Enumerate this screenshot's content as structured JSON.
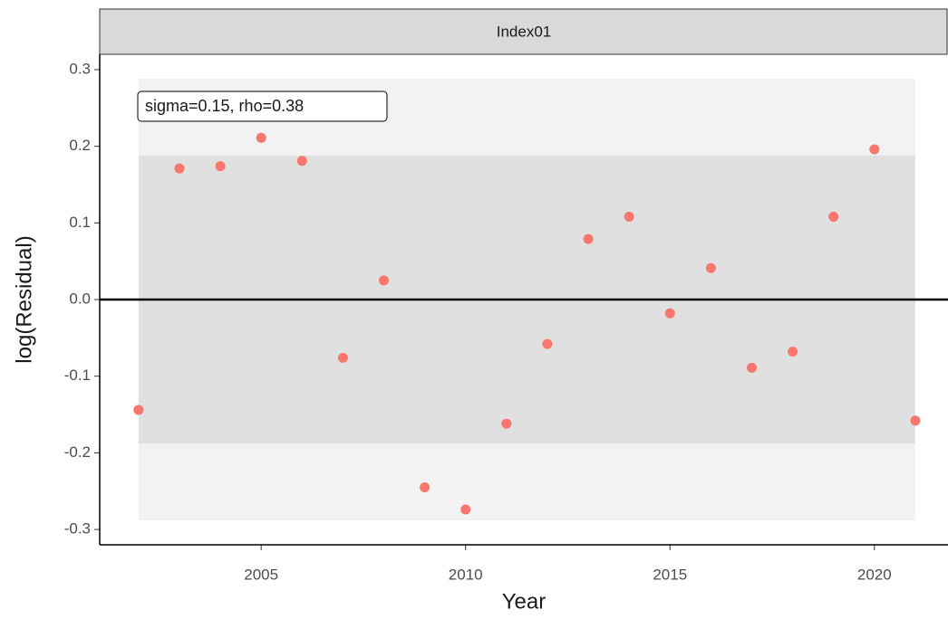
{
  "chart_data": {
    "type": "scatter",
    "strip": "Index01",
    "annotation": "sigma=0.15, rho=0.38",
    "x_label": "Year",
    "y_label": "log(Residual)",
    "x": [
      2002,
      2003,
      2004,
      2005,
      2006,
      2007,
      2008,
      2009,
      2010,
      2011,
      2012,
      2013,
      2014,
      2015,
      2016,
      2017,
      2018,
      2019,
      2020,
      2021
    ],
    "values": [
      -0.144,
      0.171,
      0.174,
      0.211,
      0.181,
      -0.076,
      0.025,
      -0.245,
      -0.274,
      -0.162,
      -0.058,
      0.079,
      0.108,
      -0.018,
      0.041,
      -0.089,
      -0.068,
      0.108,
      0.196,
      -0.158
    ],
    "color": "#f8766d",
    "band_outer": [
      -0.288,
      0.288
    ],
    "band_inner": [
      -0.188,
      0.188
    ],
    "xlim": [
      2001.05,
      2021.8
    ],
    "ylim": [
      -0.32,
      0.32
    ],
    "xticks": [
      2005,
      2010,
      2015,
      2020
    ],
    "yticks": [
      -0.3,
      -0.2,
      -0.1,
      {
        "value": 0,
        "label": "0.0"
      },
      0.1,
      0.2,
      0.3
    ]
  }
}
